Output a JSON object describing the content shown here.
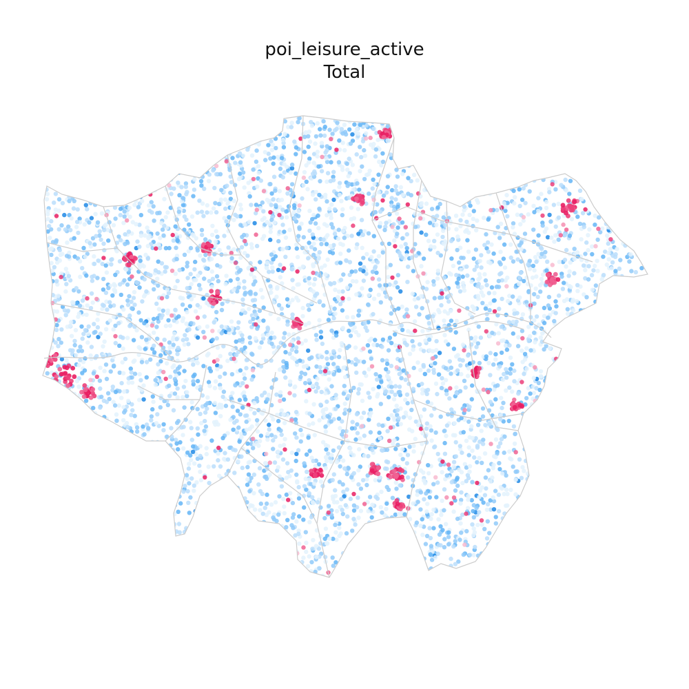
{
  "title": "poi_leisure_active",
  "subtitle": "Total",
  "colors": {
    "background": "#ffffff",
    "boundary": "#cccccc",
    "low": [
      "#e3f2fd",
      "#bbdefb",
      "#90caf9",
      "#64b5f6",
      "#1e88e5"
    ],
    "high": [
      "#f8bbd0",
      "#f48fb1",
      "#f06292",
      "#ec407a",
      "#e91e63"
    ]
  },
  "legend": "none",
  "axes": "off"
}
